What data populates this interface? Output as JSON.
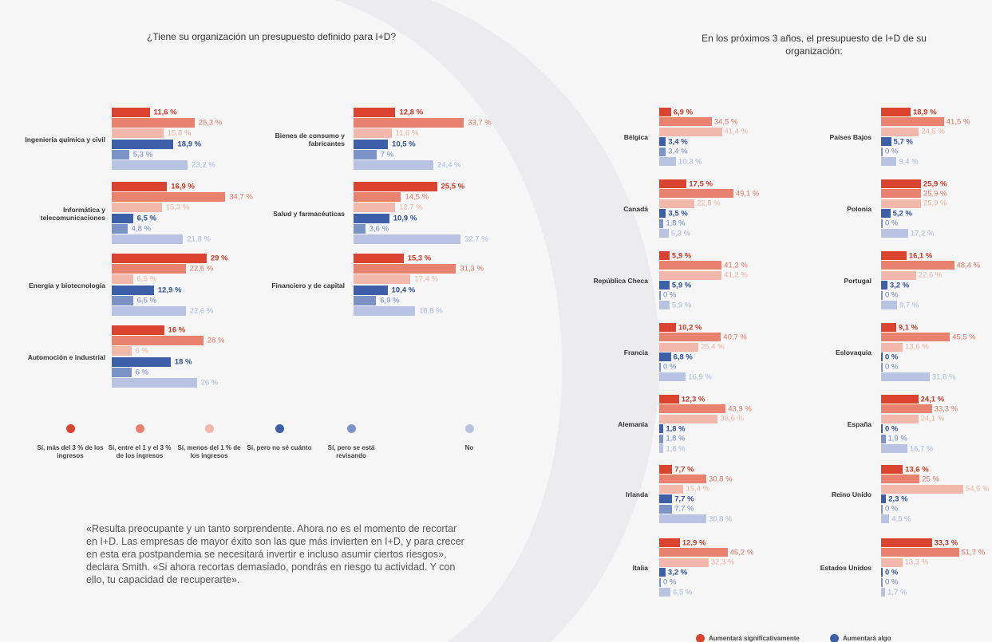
{
  "chart_data": [
    {
      "type": "bar",
      "orientation": "horizontal",
      "title": "¿Tiene su organización un presupuesto definido para I+D?",
      "categories": [
        "Ingeniería química y civil",
        "Informática y telecomunicaciones",
        "Energía y biotecnología",
        "Automoción e industrial",
        "Bienes de consumo y fabricantes",
        "Salud y farmacéuticas",
        "Financiero y de capital"
      ],
      "series": [
        {
          "name": "Sí, más del 3 % de los ingresos",
          "color": "#d9432f",
          "values": [
            11.6,
            16.9,
            29,
            16,
            12.8,
            25.5,
            15.3
          ],
          "value_labels": [
            "11,6 %",
            "16,9 %",
            "29 %",
            "16 %",
            "12,8 %",
            "25,5 %",
            "15,3 %"
          ]
        },
        {
          "name": "Sí, entre el 1 y el 3 % de los ingresos",
          "color": "#e8826f",
          "values": [
            25.3,
            34.7,
            22.6,
            28,
            33.7,
            14.5,
            31.3
          ],
          "value_labels": [
            "25,3 %",
            "34,7 %",
            "22,6 %",
            "28 %",
            "33,7 %",
            "14,5 %",
            "31,3 %"
          ]
        },
        {
          "name": "Sí, menos del 1 % de los ingresos",
          "color": "#f2b8ac",
          "values": [
            15.8,
            15.3,
            6.5,
            6,
            11.6,
            12.7,
            17.4
          ],
          "value_labels": [
            "15,8 %",
            "15,3 %",
            "6,5 %",
            "6 %",
            "11,6 %",
            "12,7 %",
            "17,4 %"
          ]
        },
        {
          "name": "Sí, pero no sé cuánto",
          "color": "#3d5fa8",
          "values": [
            18.9,
            6.5,
            12.9,
            18,
            10.5,
            10.9,
            10.4
          ],
          "value_labels": [
            "18,9 %",
            "6,5 %",
            "12,9 %",
            "18 %",
            "10,5 %",
            "10,9 %",
            "10,4 %"
          ]
        },
        {
          "name": "Sí, pero se está revisando",
          "color": "#7c93c8",
          "values": [
            5.3,
            4.8,
            6.5,
            6,
            7,
            3.6,
            6.9
          ],
          "value_labels": [
            "5,3 %",
            "4,8 %",
            "6,5 %",
            "6 %",
            "7 %",
            "3,6 %",
            "6,9 %"
          ]
        },
        {
          "name": "No",
          "color": "#b7c3e0",
          "values": [
            23.2,
            21.8,
            22.6,
            26,
            24.4,
            32.7,
            18.8
          ],
          "value_labels": [
            "23,2 %",
            "21,8 %",
            "22,6 %",
            "26 %",
            "24,4 %",
            "32,7 %",
            "18,8 %"
          ]
        }
      ]
    },
    {
      "type": "bar",
      "orientation": "horizontal",
      "title": "En los próximos 3 años, el presupuesto de I+D de su organización:",
      "categories": [
        "Bélgica",
        "Canadá",
        "República Checa",
        "Francia",
        "Alemania",
        "Irlanda",
        "Italia",
        "Países Bajos",
        "Polonia",
        "Portugal",
        "Eslovaquia",
        "España",
        "Reino Unido",
        "Estados Unidos"
      ],
      "series": [
        {
          "name": "Aumentará significativamente",
          "color": "#d9432f",
          "values": [
            6.9,
            17.5,
            5.9,
            10.2,
            12.3,
            7.7,
            12.9,
            18.9,
            25.9,
            16.1,
            9.1,
            24.1,
            13.6,
            33.3
          ],
          "value_labels": [
            "6,9 %",
            "17,5 %",
            "5,9 %",
            "10,2 %",
            "12,3 %",
            "7,7 %",
            "12,9 %",
            "18,9 %",
            "25,9 %",
            "16,1 %",
            "9,1 %",
            "24,1 %",
            "13,6 %",
            "33,3 %"
          ]
        },
        {
          "color": "#e8826f",
          "values": [
            34.5,
            49.1,
            41.2,
            40.7,
            43.9,
            30.8,
            45.2,
            41.5,
            25.9,
            48.4,
            45.5,
            33.3,
            25,
            51.7
          ],
          "value_labels": [
            "34,5 %",
            "49,1 %",
            "41,2 %",
            "40,7 %",
            "43,9 %",
            "30,8 %",
            "45,2 %",
            "41,5 %",
            "25,9 %",
            "48,4 %",
            "45,5 %",
            "33,3 %",
            "25 %",
            "51,7 %"
          ]
        },
        {
          "color": "#f2b8ac",
          "values": [
            41.4,
            22.8,
            41.2,
            25.4,
            38.6,
            15.4,
            32.3,
            24.5,
            25.9,
            22.6,
            13.6,
            24.1,
            54.5,
            13.3
          ],
          "value_labels": [
            "41,4 %",
            "22,8 %",
            "41,2 %",
            "25,4 %",
            "38,6 %",
            "15,4 %",
            "32,3 %",
            "24,5 %",
            "25,9 %",
            "22,6 %",
            "13,6 %",
            "24,1 %",
            "54,5 %",
            "13,3 %"
          ]
        },
        {
          "name": "Aumentará algo",
          "color": "#3d5fa8",
          "values": [
            3.4,
            3.5,
            5.9,
            6.8,
            1.8,
            7.7,
            3.2,
            5.7,
            5.2,
            3.2,
            0,
            0,
            2.3,
            0
          ],
          "value_labels": [
            "3,4 %",
            "3,5 %",
            "5,9 %",
            "6,8 %",
            "1,8 %",
            "7,7 %",
            "3,2 %",
            "5,7 %",
            "5,2 %",
            "3,2 %",
            "0 %",
            "0 %",
            "2,3 %",
            "0 %"
          ]
        },
        {
          "color": "#7c93c8",
          "values": [
            3.4,
            1.8,
            0,
            0,
            1.8,
            7.7,
            0,
            0,
            0,
            0,
            0,
            1.9,
            0,
            0
          ],
          "value_labels": [
            "3,4 %",
            "1,8 %",
            "0 %",
            "0 %",
            "1,8 %",
            "7,7 %",
            "0 %",
            "0 %",
            "0 %",
            "0 %",
            "0 %",
            "1,9 %",
            "0 %",
            "0 %"
          ]
        },
        {
          "color": "#b7c3e0",
          "values": [
            10.3,
            5.3,
            5.9,
            16.9,
            1.8,
            30.8,
            6.5,
            9.4,
            17.2,
            9.7,
            31.8,
            16.7,
            4.5,
            1.7
          ],
          "value_labels": [
            "10,3 %",
            "5,3 %",
            "5,9 %",
            "16,9 %",
            "1,8 %",
            "30,8 %",
            "6,5 %",
            "9,4 %",
            "17,2 %",
            "9,7 %",
            "31,8 %",
            "16,7 %",
            "4,5 %",
            "1,7 %"
          ]
        }
      ]
    }
  ],
  "quote": "«Resulta preocupante y un tanto sorprendente. Ahora no es el momento de recortar en I+D. Las empresas de mayor éxito son las que más invierten en I+D, y para crecer en esta era postpandemia se necesitará invertir e incluso asumir ciertos riesgos», declara Smith. «Si ahora recortas demasiado, pondrás en riesgo tu actividad. Y con ello, tu capacidad de recuperarte»."
}
